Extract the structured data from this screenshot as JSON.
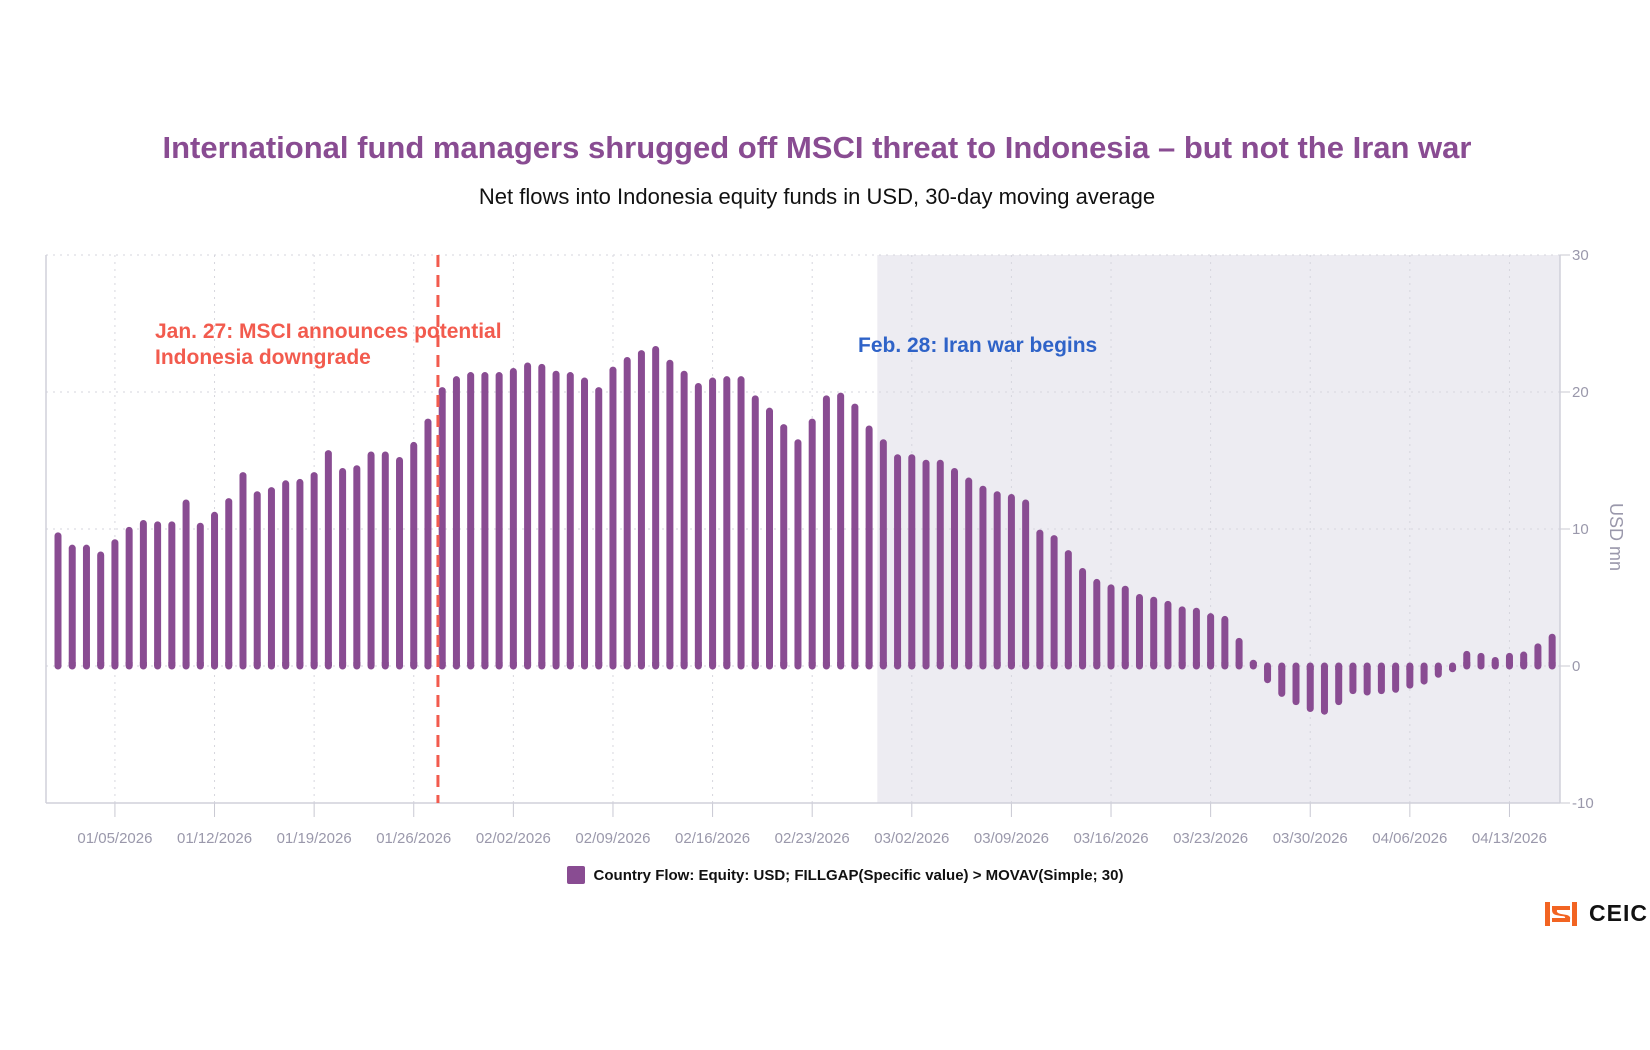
{
  "chart_data": {
    "type": "bar",
    "title": "International fund managers shrugged off MSCI threat to Indonesia – but not the Iran war",
    "subtitle": "Net flows into Indonesia equity funds in USD, 30-day moving average",
    "ylabel": "USD mn",
    "xlabel": "",
    "ylim": [
      -10,
      30
    ],
    "yticks": [
      30,
      20,
      10,
      0,
      -10
    ],
    "grid": true,
    "x_start": "01/01/2026",
    "x_end": "04/16/2026",
    "xtick_labels": [
      "01/05/2026",
      "01/12/2026",
      "01/19/2026",
      "01/26/2026",
      "02/02/2026",
      "02/09/2026",
      "02/16/2026",
      "02/23/2026",
      "03/02/2026",
      "03/09/2026",
      "03/16/2026",
      "03/23/2026",
      "03/30/2026",
      "04/06/2026",
      "04/13/2026"
    ],
    "xtick_day_offsets": [
      4,
      11,
      18,
      25,
      32,
      39,
      46,
      53,
      60,
      67,
      74,
      81,
      88,
      95,
      102
    ],
    "series": [
      {
        "name": "Country Flow: Equity: USD; FILLGAP(Specific value) > MOVAV(Simple; 30)",
        "color": "#894c92",
        "values": [
          9.5,
          8.6,
          8.6,
          8.1,
          9.0,
          9.9,
          10.4,
          10.3,
          10.3,
          11.9,
          10.2,
          11.0,
          12.0,
          13.9,
          12.5,
          12.8,
          13.3,
          13.4,
          13.9,
          15.5,
          14.2,
          14.4,
          15.4,
          15.4,
          15.0,
          16.1,
          17.8,
          20.1,
          20.9,
          21.2,
          21.2,
          21.2,
          21.5,
          21.9,
          21.8,
          21.3,
          21.2,
          20.8,
          20.1,
          21.6,
          22.3,
          22.8,
          23.1,
          22.1,
          21.3,
          20.4,
          20.8,
          20.9,
          20.9,
          19.5,
          18.6,
          17.4,
          16.3,
          17.8,
          19.5,
          19.7,
          18.9,
          17.3,
          16.3,
          15.2,
          15.2,
          14.8,
          14.8,
          14.2,
          13.5,
          12.9,
          12.5,
          12.3,
          11.9,
          9.7,
          9.3,
          8.2,
          6.9,
          6.1,
          5.7,
          5.6,
          5.0,
          4.8,
          4.5,
          4.1,
          4.0,
          3.6,
          3.4,
          1.8,
          0.2,
          -1.0,
          -2.0,
          -2.6,
          -3.1,
          -3.3,
          -2.6,
          -1.8,
          -1.9,
          -1.8,
          -1.7,
          -1.4,
          -1.1,
          -0.6,
          -0.2,
          0.85,
          0.7,
          0.4,
          0.7,
          0.8,
          1.4,
          2.1
        ]
      }
    ],
    "annotations": [
      {
        "type": "vline",
        "day_offset": 26.7,
        "date": "01/27/2026",
        "color": "#f25b4e",
        "style": "dashed",
        "text": [
          "Jan. 27: MSCI announces potential",
          "Indonesia downgrade"
        ]
      },
      {
        "type": "shaded_region",
        "start_day_offset": 58,
        "start_date": "02/28/2026",
        "end": "plot-end",
        "color": "#edecf2",
        "text": [
          "Feb. 28: Iran war begins"
        ],
        "text_color": "#2f63c8"
      }
    ],
    "legend_position": "bottom-center"
  },
  "legend": {
    "label": "Country Flow: Equity: USD; FILLGAP(Specific value) > MOVAV(Simple; 30)"
  },
  "brand": {
    "name": "CEIC",
    "color": "#f26422"
  }
}
